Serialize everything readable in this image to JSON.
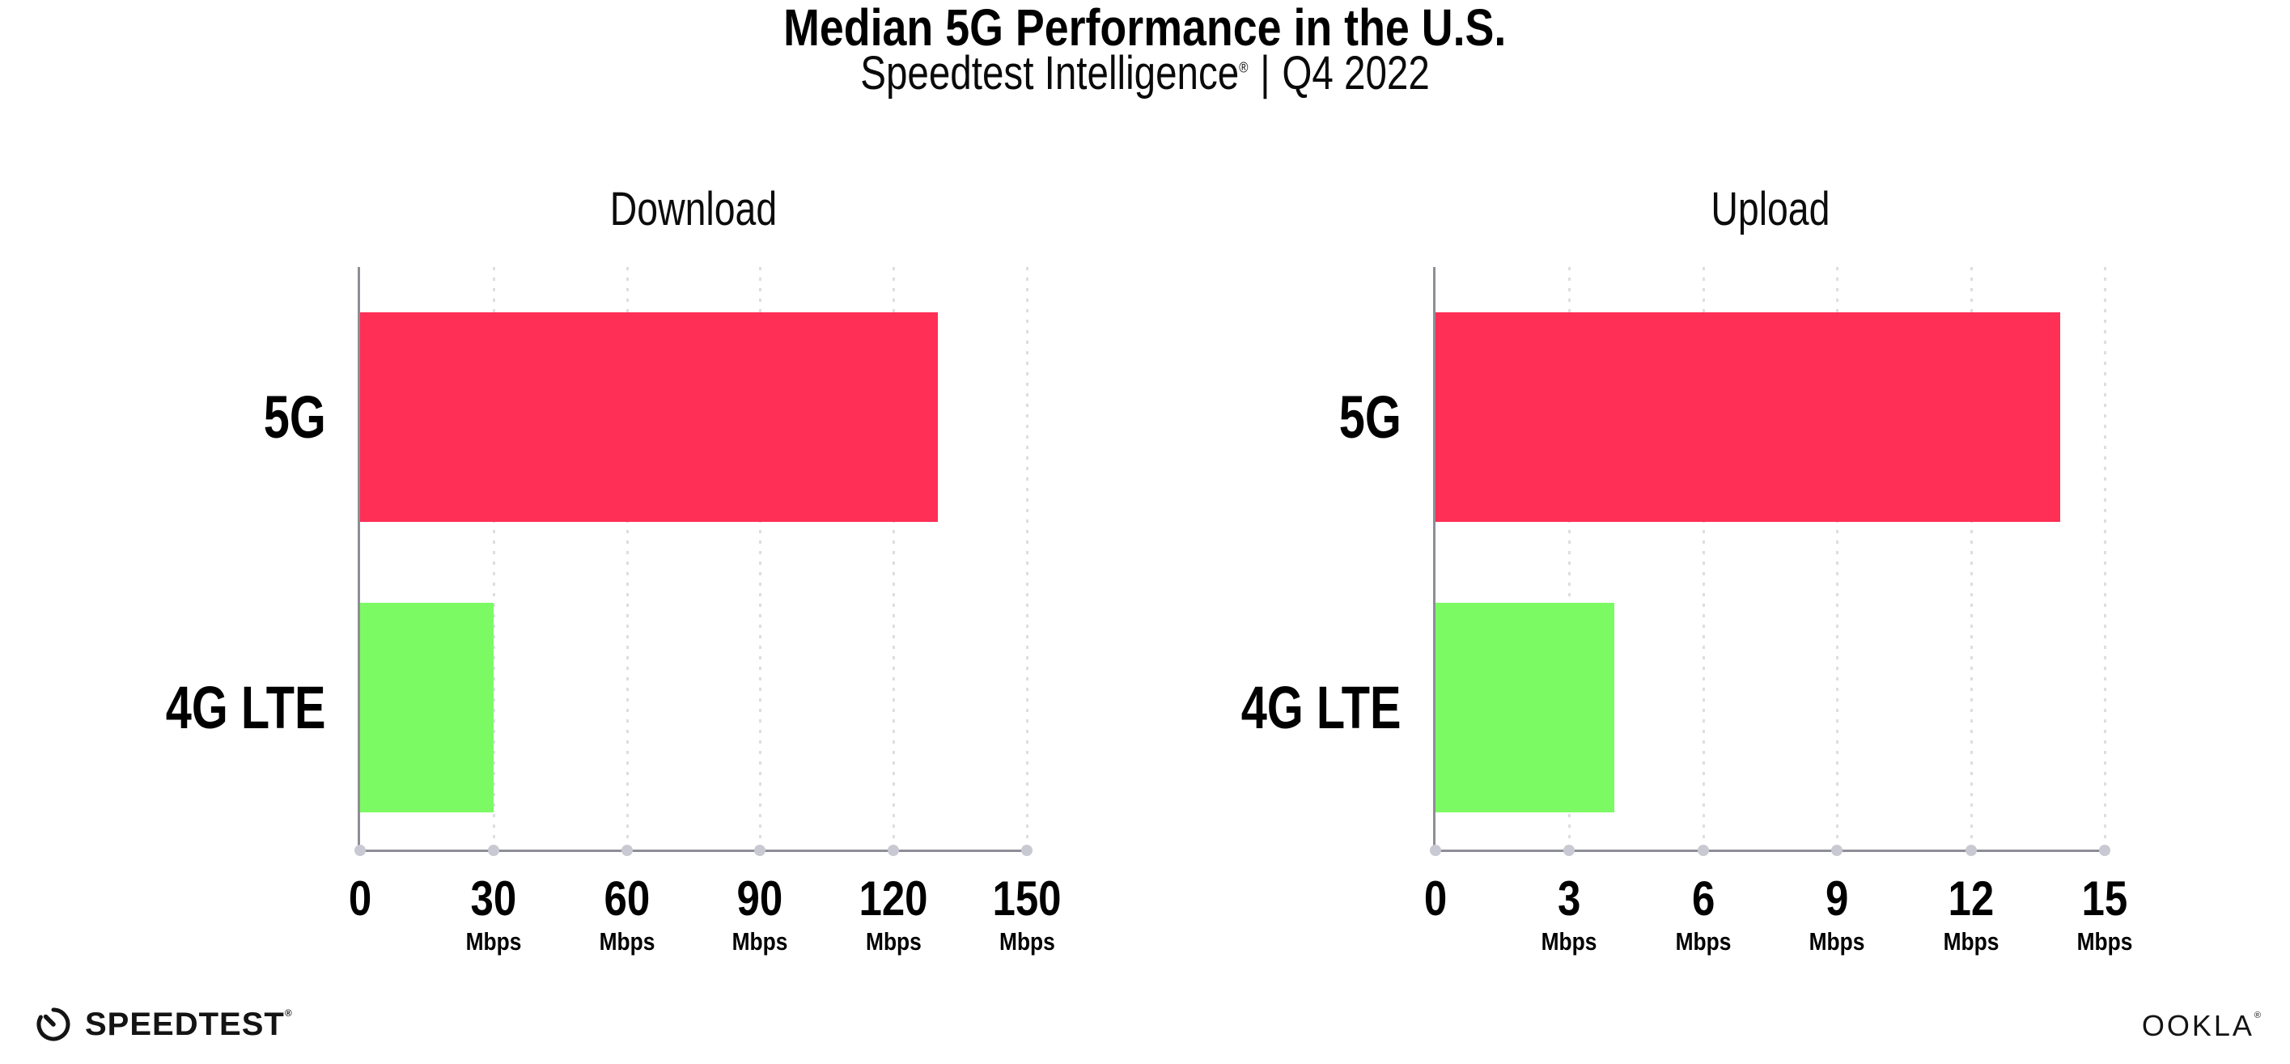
{
  "header": {
    "title": "Median 5G Performance in the U.S.",
    "subtitle_brand": "Speedtest Intelligence",
    "subtitle_reg": "®",
    "subtitle_sep": "|",
    "subtitle_period": "Q4 2022"
  },
  "colors": {
    "bar_5g": "#FF2F56",
    "bar_4g_lte": "#7CFA64",
    "axis": "#8E8E97",
    "gridline": "#DDDDE4",
    "tick_dot": "#C9C9D3",
    "text": "#000000"
  },
  "chart_data": [
    {
      "type": "bar",
      "orientation": "horizontal",
      "title": "Download",
      "categories": [
        "5G",
        "4G LTE"
      ],
      "values": [
        130,
        30
      ],
      "unit": "Mbps",
      "xlim": [
        0,
        150
      ],
      "xticks": [
        0,
        30,
        60,
        90,
        120,
        150
      ],
      "bar_colors": [
        "#FF2F56",
        "#7CFA64"
      ],
      "grid": "vertical-dotted",
      "legend": "none"
    },
    {
      "type": "bar",
      "orientation": "horizontal",
      "title": "Upload",
      "categories": [
        "5G",
        "4G LTE"
      ],
      "values": [
        14,
        4
      ],
      "unit": "Mbps",
      "xlim": [
        0,
        15
      ],
      "xticks": [
        0,
        3,
        6,
        9,
        12,
        15
      ],
      "bar_colors": [
        "#FF2F56",
        "#7CFA64"
      ],
      "grid": "vertical-dotted",
      "legend": "none"
    }
  ],
  "footer": {
    "speedtest_label": "SPEEDTEST",
    "speedtest_reg": "®",
    "ookla_label": "OOKLA",
    "ookla_reg": "®"
  }
}
